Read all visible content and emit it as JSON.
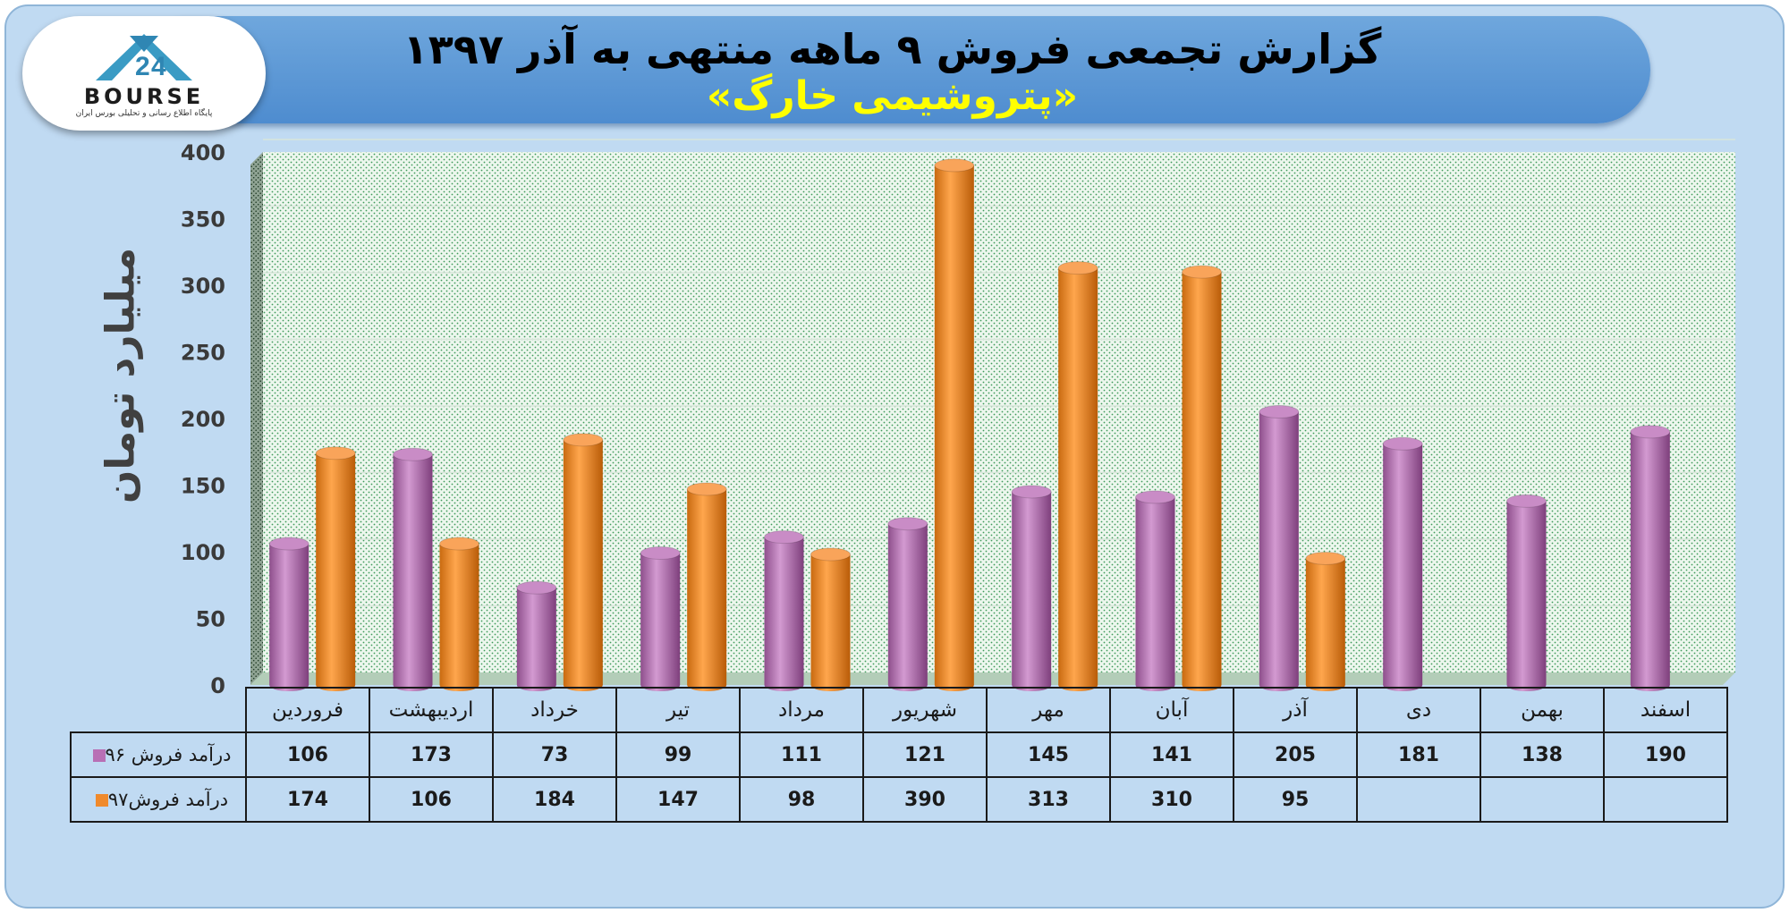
{
  "header": {
    "title": "گزارش تجمعی فروش ۹ ماهه منتهی به آذر ۱۳۹۷",
    "subtitle": "«پتروشیمی خارگ»"
  },
  "logo": {
    "word": "BOURSE",
    "caption": "پایگاه اطلاع رسانی و تحلیلی بورس ایران",
    "icon": "bourse-logo-icon"
  },
  "colors": {
    "series_96": "#b86fb5",
    "series_97": "#f08a2c",
    "background": "#c0daf2",
    "title_banner": "#5b9bd9",
    "subtitle_text": "#ffff00"
  },
  "chart_data": {
    "type": "bar",
    "categories": [
      "فروردین",
      "اردیبهشت",
      "خرداد",
      "تیر",
      "مرداد",
      "شهریور",
      "مهر",
      "آبان",
      "آذر",
      "دی",
      "بهمن",
      "اسفند"
    ],
    "series": [
      {
        "name": "درآمد فروش ۹۶",
        "values": [
          106,
          173,
          73,
          99,
          111,
          121,
          145,
          141,
          205,
          181,
          138,
          190
        ]
      },
      {
        "name": "درآمد فروش۹۷",
        "values": [
          174,
          106,
          184,
          147,
          98,
          390,
          313,
          310,
          95,
          null,
          null,
          null
        ]
      }
    ],
    "ylabel": "میلیارد تومان",
    "ylim": [
      0,
      400
    ],
    "yticks": [
      0,
      50,
      100,
      150,
      200,
      250,
      300,
      350,
      400
    ],
    "grid": true,
    "legend": "data-table-below"
  }
}
